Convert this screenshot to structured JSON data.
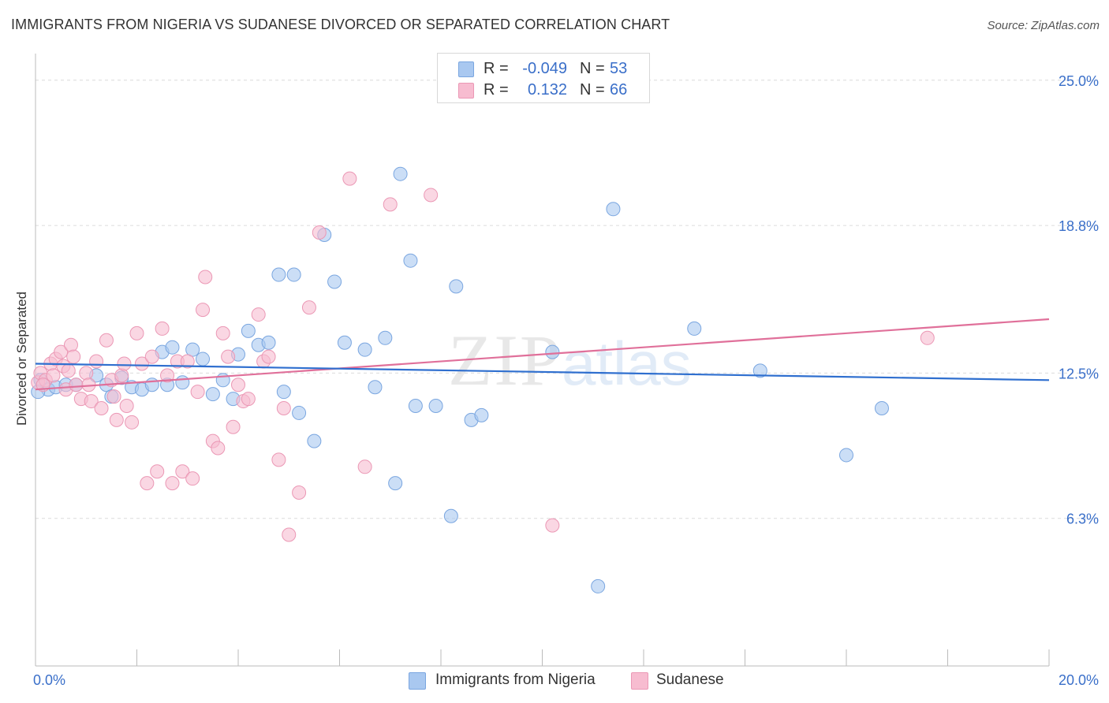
{
  "title": "IMMIGRANTS FROM NIGERIA VS SUDANESE DIVORCED OR SEPARATED CORRELATION CHART",
  "source": "Source: ZipAtlas.com",
  "watermark": "ZIPatlas",
  "colors": {
    "nigeria_fill": "#a9c8f0",
    "nigeria_stroke": "#7aa6e0",
    "nigeria_line": "#2f6fcf",
    "sudanese_fill": "#f7bcd0",
    "sudanese_stroke": "#eb98b5",
    "sudanese_line": "#e0709a",
    "tick_label": "#3a6fc9"
  },
  "legend": {
    "rows": [
      {
        "r_label": "R =",
        "r_value": "-0.049",
        "n_label": "N =",
        "n_value": "53"
      },
      {
        "r_label": "R =",
        "r_value": "0.132",
        "n_label": "N =",
        "n_value": "66"
      }
    ]
  },
  "bottom_legend": {
    "nigeria": "Immigrants from Nigeria",
    "sudanese": "Sudanese"
  },
  "chart_data": {
    "type": "scatter",
    "title": "IMMIGRANTS FROM NIGERIA VS SUDANESE DIVORCED OR SEPARATED CORRELATION CHART",
    "xlabel": "",
    "ylabel": "Divorced or Separated",
    "xlim": [
      0,
      20
    ],
    "ylim": [
      0,
      25.8
    ],
    "x_tick_labels": [
      "0.0%",
      "20.0%"
    ],
    "y_ticks": [
      6.3,
      12.5,
      18.8,
      25.0
    ],
    "y_tick_labels": [
      "6.3%",
      "12.5%",
      "18.8%",
      "25.0%"
    ],
    "grid": "horizontal dashed",
    "legend_position": "top-center",
    "series": [
      {
        "name": "Immigrants from Nigeria",
        "trend": [
          [
            0,
            12.9
          ],
          [
            20,
            12.2
          ]
        ],
        "points": [
          [
            0.1,
            12.2
          ],
          [
            0.25,
            11.8
          ],
          [
            0.4,
            11.9
          ],
          [
            0.6,
            12.0
          ],
          [
            0.8,
            12.0
          ],
          [
            1.2,
            12.4
          ],
          [
            1.4,
            12.0
          ],
          [
            1.5,
            11.5
          ],
          [
            1.7,
            12.3
          ],
          [
            1.9,
            11.9
          ],
          [
            2.1,
            11.8
          ],
          [
            2.3,
            12.0
          ],
          [
            2.5,
            13.4
          ],
          [
            2.6,
            12.0
          ],
          [
            2.7,
            13.6
          ],
          [
            2.9,
            12.1
          ],
          [
            3.1,
            13.5
          ],
          [
            3.3,
            13.1
          ],
          [
            3.5,
            11.6
          ],
          [
            3.7,
            12.2
          ],
          [
            3.9,
            11.4
          ],
          [
            4.0,
            13.3
          ],
          [
            4.2,
            14.3
          ],
          [
            4.4,
            13.7
          ],
          [
            4.6,
            13.8
          ],
          [
            4.8,
            16.7
          ],
          [
            4.9,
            11.7
          ],
          [
            5.1,
            16.7
          ],
          [
            5.2,
            10.8
          ],
          [
            5.5,
            9.6
          ],
          [
            5.7,
            18.4
          ],
          [
            5.9,
            16.4
          ],
          [
            6.1,
            13.8
          ],
          [
            6.5,
            13.5
          ],
          [
            6.7,
            11.9
          ],
          [
            6.9,
            14.0
          ],
          [
            7.1,
            7.8
          ],
          [
            7.2,
            21.0
          ],
          [
            7.4,
            17.3
          ],
          [
            7.5,
            11.1
          ],
          [
            7.9,
            11.1
          ],
          [
            8.2,
            6.4
          ],
          [
            8.3,
            16.2
          ],
          [
            8.6,
            10.5
          ],
          [
            8.8,
            10.7
          ],
          [
            10.2,
            13.4
          ],
          [
            11.1,
            3.4
          ],
          [
            11.4,
            19.5
          ],
          [
            13.0,
            14.4
          ],
          [
            14.3,
            12.6
          ],
          [
            16.0,
            9.0
          ],
          [
            16.7,
            11.0
          ],
          [
            0.05,
            11.7
          ]
        ]
      },
      {
        "name": "Sudanese",
        "trend": [
          [
            0,
            11.8
          ],
          [
            20,
            14.8
          ]
        ],
        "points": [
          [
            0.05,
            12.1
          ],
          [
            0.1,
            12.5
          ],
          [
            0.2,
            12.2
          ],
          [
            0.3,
            12.9
          ],
          [
            0.4,
            13.1
          ],
          [
            0.5,
            13.4
          ],
          [
            0.55,
            12.8
          ],
          [
            0.6,
            11.8
          ],
          [
            0.7,
            13.7
          ],
          [
            0.75,
            13.2
          ],
          [
            0.8,
            12.0
          ],
          [
            0.9,
            11.4
          ],
          [
            1.0,
            12.5
          ],
          [
            1.1,
            11.3
          ],
          [
            1.2,
            13.0
          ],
          [
            1.3,
            11.0
          ],
          [
            1.4,
            13.9
          ],
          [
            1.5,
            12.2
          ],
          [
            1.6,
            10.5
          ],
          [
            1.7,
            12.4
          ],
          [
            1.75,
            12.9
          ],
          [
            1.8,
            11.1
          ],
          [
            1.9,
            10.4
          ],
          [
            2.0,
            14.2
          ],
          [
            2.1,
            12.9
          ],
          [
            2.2,
            7.8
          ],
          [
            2.3,
            13.2
          ],
          [
            2.4,
            8.3
          ],
          [
            2.5,
            14.4
          ],
          [
            2.6,
            12.4
          ],
          [
            2.7,
            7.8
          ],
          [
            2.8,
            13.0
          ],
          [
            2.9,
            8.3
          ],
          [
            3.0,
            13.0
          ],
          [
            3.1,
            8.0
          ],
          [
            3.2,
            11.7
          ],
          [
            3.3,
            15.2
          ],
          [
            3.35,
            16.6
          ],
          [
            3.5,
            9.6
          ],
          [
            3.6,
            9.3
          ],
          [
            3.7,
            14.2
          ],
          [
            3.8,
            13.2
          ],
          [
            3.9,
            10.2
          ],
          [
            4.0,
            12.0
          ],
          [
            4.1,
            11.3
          ],
          [
            4.2,
            11.4
          ],
          [
            4.4,
            15.0
          ],
          [
            4.5,
            13.0
          ],
          [
            4.6,
            13.2
          ],
          [
            4.8,
            8.8
          ],
          [
            4.9,
            11.0
          ],
          [
            5.0,
            5.6
          ],
          [
            5.2,
            7.4
          ],
          [
            5.4,
            15.3
          ],
          [
            5.6,
            18.5
          ],
          [
            6.2,
            20.8
          ],
          [
            6.5,
            8.5
          ],
          [
            7.0,
            19.7
          ],
          [
            7.8,
            20.1
          ],
          [
            10.2,
            6.0
          ],
          [
            17.6,
            14.0
          ],
          [
            0.15,
            12.0
          ],
          [
            0.35,
            12.4
          ],
          [
            0.65,
            12.6
          ],
          [
            1.05,
            12.0
          ],
          [
            1.55,
            11.5
          ]
        ]
      }
    ]
  }
}
